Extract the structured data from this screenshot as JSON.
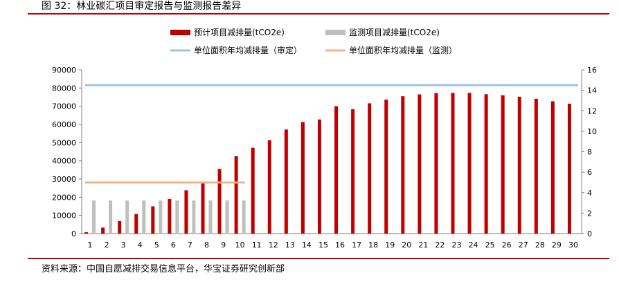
{
  "figure": {
    "title": "图 32：林业碳汇项目审定报告与监测报告差异",
    "source": "资料来源：中国自愿减排交易信息平台，华宝证券研究创新部"
  },
  "chart_data": {
    "type": "bar",
    "categories": [
      "1",
      "2",
      "3",
      "4",
      "5",
      "6",
      "7",
      "8",
      "9",
      "10",
      "11",
      "12",
      "13",
      "14",
      "15",
      "16",
      "17",
      "18",
      "19",
      "20",
      "21",
      "22",
      "23",
      "24",
      "25",
      "26",
      "27",
      "28",
      "29",
      "30"
    ],
    "series": [
      {
        "name": "预计项目减排量(tCO2e)",
        "kind": "bar",
        "axis": "left",
        "color": "#c00000",
        "values": [
          800,
          3300,
          6900,
          10800,
          15000,
          19000,
          23800,
          28500,
          35500,
          42500,
          47200,
          51300,
          57200,
          61300,
          62700,
          70000,
          68300,
          71600,
          73600,
          75500,
          76500,
          77200,
          77300,
          77300,
          76600,
          76000,
          75200,
          74100,
          72700,
          71400
        ]
      },
      {
        "name": "监测项目减排量(tCO2e)",
        "kind": "bar",
        "axis": "left",
        "color": "#bfbfbf",
        "values": [
          18200,
          18200,
          18200,
          18200,
          18200,
          18200,
          18200,
          18200,
          18200,
          18200,
          null,
          null,
          null,
          null,
          null,
          null,
          null,
          null,
          null,
          null,
          null,
          null,
          null,
          null,
          null,
          null,
          null,
          null,
          null,
          null
        ]
      },
      {
        "name": "单位面积年均减排量（审定）",
        "kind": "line",
        "axis": "right",
        "color": "#9dc3e6",
        "values": [
          14.5,
          14.5,
          14.5,
          14.5,
          14.5,
          14.5,
          14.5,
          14.5,
          14.5,
          14.5,
          14.5,
          14.5,
          14.5,
          14.5,
          14.5,
          14.5,
          14.5,
          14.5,
          14.5,
          14.5,
          14.5,
          14.5,
          14.5,
          14.5,
          14.5,
          14.5,
          14.5,
          14.5,
          14.5,
          14.5
        ]
      },
      {
        "name": "单位面积年均减排量（监测）",
        "kind": "line",
        "axis": "right",
        "color": "#f4b183",
        "values": [
          5.0,
          5.0,
          5.0,
          5.0,
          5.0,
          5.0,
          5.0,
          5.0,
          5.0,
          5.0,
          null,
          null,
          null,
          null,
          null,
          null,
          null,
          null,
          null,
          null,
          null,
          null,
          null,
          null,
          null,
          null,
          null,
          null,
          null,
          null
        ]
      }
    ],
    "ylim": [
      0,
      90000
    ],
    "yticks": [
      "0",
      "10000",
      "20000",
      "30000",
      "40000",
      "50000",
      "60000",
      "70000",
      "80000",
      "90000"
    ],
    "y2lim": [
      0,
      16
    ],
    "y2ticks": [
      "0",
      "2",
      "4",
      "6",
      "8",
      "10",
      "12",
      "14",
      "16"
    ],
    "xlabel": "",
    "ylabel": "",
    "grid": false,
    "legend_placement": "top"
  }
}
